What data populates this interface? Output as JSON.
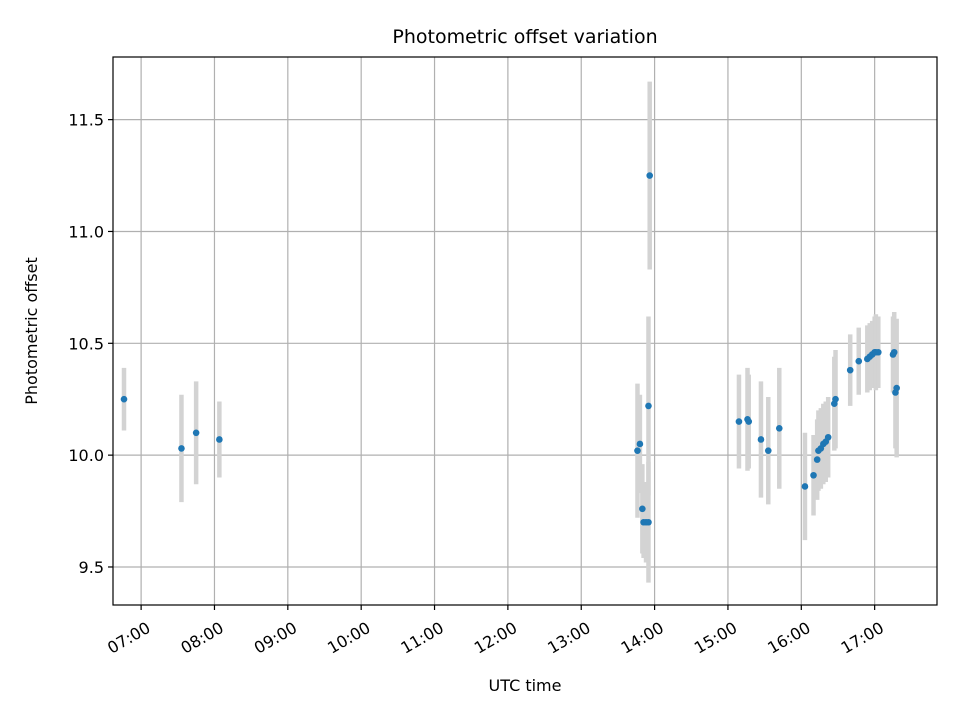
{
  "chart_data": {
    "type": "scatter",
    "title": "Photometric offset variation",
    "xlabel": "UTC time",
    "ylabel": "Photometric offset",
    "x_ticks": [
      "07:00",
      "08:00",
      "09:00",
      "10:00",
      "11:00",
      "12:00",
      "13:00",
      "14:00",
      "15:00",
      "16:00",
      "17:00"
    ],
    "y_ticks": [
      "9.5",
      "10.0",
      "10.5",
      "11.0",
      "11.5"
    ],
    "xlim": [
      "06:37",
      "17:51"
    ],
    "ylim": [
      9.33,
      11.78
    ],
    "grid": true,
    "colors": {
      "point": "#1f77b4",
      "errorbar": "#d3d3d3",
      "grid": "#b0b0b0"
    },
    "points": [
      {
        "t": "06:46",
        "y": 10.25,
        "err": 0.14
      },
      {
        "t": "07:33",
        "y": 10.03,
        "err": 0.24
      },
      {
        "t": "07:45",
        "y": 10.1,
        "err": 0.23
      },
      {
        "t": "08:04",
        "y": 10.07,
        "err": 0.17
      },
      {
        "t": "13:46",
        "y": 10.02,
        "err": 0.3
      },
      {
        "t": "13:48",
        "y": 10.05,
        "err": 0.22
      },
      {
        "t": "13:50",
        "y": 9.76,
        "err": 0.2
      },
      {
        "t": "13:51",
        "y": 9.7,
        "err": 0.16
      },
      {
        "t": "13:53",
        "y": 9.7,
        "err": 0.18
      },
      {
        "t": "13:55",
        "y": 9.7,
        "err": 0.27
      },
      {
        "t": "13:55",
        "y": 10.22,
        "err": 0.4
      },
      {
        "t": "13:56",
        "y": 11.25,
        "err": 0.42
      },
      {
        "t": "15:09",
        "y": 10.15,
        "err": 0.21
      },
      {
        "t": "15:16",
        "y": 10.16,
        "err": 0.23
      },
      {
        "t": "15:17",
        "y": 10.15,
        "err": 0.21
      },
      {
        "t": "15:27",
        "y": 10.07,
        "err": 0.26
      },
      {
        "t": "15:33",
        "y": 10.02,
        "err": 0.24
      },
      {
        "t": "15:42",
        "y": 10.12,
        "err": 0.27
      },
      {
        "t": "16:03",
        "y": 9.86,
        "err": 0.24
      },
      {
        "t": "16:10",
        "y": 9.91,
        "err": 0.18
      },
      {
        "t": "16:13",
        "y": 9.98,
        "err": 0.18
      },
      {
        "t": "16:14",
        "y": 10.02,
        "err": 0.18
      },
      {
        "t": "16:16",
        "y": 10.03,
        "err": 0.18
      },
      {
        "t": "16:18",
        "y": 10.05,
        "err": 0.18
      },
      {
        "t": "16:20",
        "y": 10.06,
        "err": 0.18
      },
      {
        "t": "16:22",
        "y": 10.08,
        "err": 0.18
      },
      {
        "t": "16:27",
        "y": 10.23,
        "err": 0.21
      },
      {
        "t": "16:28",
        "y": 10.25,
        "err": 0.22
      },
      {
        "t": "16:40",
        "y": 10.38,
        "err": 0.16
      },
      {
        "t": "16:47",
        "y": 10.42,
        "err": 0.15
      },
      {
        "t": "16:54",
        "y": 10.43,
        "err": 0.15
      },
      {
        "t": "16:56",
        "y": 10.44,
        "err": 0.15
      },
      {
        "t": "16:58",
        "y": 10.45,
        "err": 0.15
      },
      {
        "t": "17:00",
        "y": 10.46,
        "err": 0.16
      },
      {
        "t": "17:01",
        "y": 10.46,
        "err": 0.17
      },
      {
        "t": "17:03",
        "y": 10.46,
        "err": 0.16
      },
      {
        "t": "17:15",
        "y": 10.45,
        "err": 0.17
      },
      {
        "t": "17:16",
        "y": 10.46,
        "err": 0.18
      },
      {
        "t": "17:17",
        "y": 10.28,
        "err": 0.25
      },
      {
        "t": "17:18",
        "y": 10.3,
        "err": 0.31
      }
    ]
  }
}
